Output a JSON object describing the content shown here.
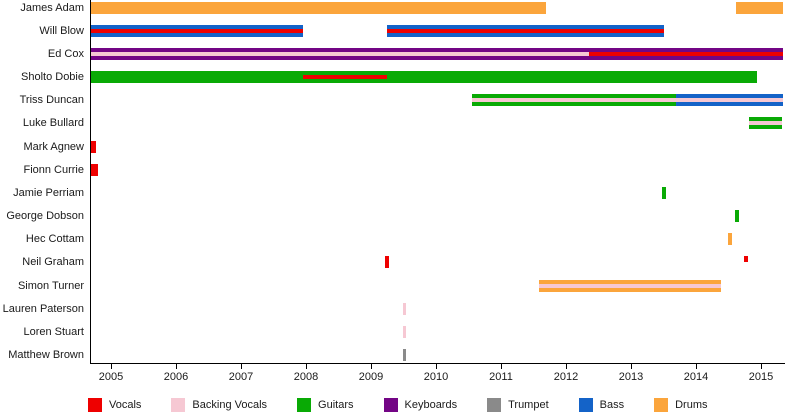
{
  "chart_data": {
    "type": "bar",
    "subtype": "membership-timeline",
    "title": "",
    "x_axis": {
      "tick_years": [
        2005,
        2006,
        2007,
        2008,
        2009,
        2010,
        2011,
        2012,
        2013,
        2014,
        2015
      ],
      "range": [
        2004.68,
        2015.37
      ],
      "grid": false
    },
    "legend_position": "bottom",
    "roles": [
      {
        "label": "Vocals",
        "color": "#ee0000"
      },
      {
        "label": "Backing Vocals",
        "color": "#f6c8d3"
      },
      {
        "label": "Guitars",
        "color": "#09aa05"
      },
      {
        "label": "Keyboards",
        "color": "#730585"
      },
      {
        "label": "Trumpet",
        "color": "#8a8a8a"
      },
      {
        "label": "Bass",
        "color": "#1463c8"
      },
      {
        "label": "Drums",
        "color": "#fba53c"
      }
    ],
    "members": [
      {
        "name": "James Adam",
        "segments": [
          {
            "from": 2004.68,
            "to": 2011.68,
            "role": "Drums"
          },
          {
            "from": 2014.6,
            "to": 2015.32,
            "role": "Drums"
          }
        ]
      },
      {
        "name": "Will Blow",
        "segments": [
          {
            "from": 2004.68,
            "to": 2007.94,
            "role": "Bass",
            "stripe": "Vocals"
          },
          {
            "from": 2009.23,
            "to": 2013.49,
            "role": "Bass",
            "stripe": "Vocals"
          }
        ]
      },
      {
        "name": "Ed Cox",
        "segments": [
          {
            "from": 2004.68,
            "to": 2012.34,
            "role": "Keyboards",
            "stripe": "Backing Vocals"
          },
          {
            "from": 2012.34,
            "to": 2015.32,
            "role": "Keyboards",
            "stripe": "Vocals"
          }
        ]
      },
      {
        "name": "Sholto Dobie",
        "segments": [
          {
            "from": 2004.68,
            "to": 2007.94,
            "role": "Guitars"
          },
          {
            "from": 2007.94,
            "to": 2009.23,
            "role": "Guitars",
            "stripe": "Vocals"
          },
          {
            "from": 2009.23,
            "to": 2014.92,
            "role": "Guitars"
          }
        ]
      },
      {
        "name": "Triss Duncan",
        "segments": [
          {
            "from": 2010.54,
            "to": 2013.68,
            "role": "Guitars",
            "stripe": "Backing Vocals"
          },
          {
            "from": 2013.68,
            "to": 2015.32,
            "role": "Bass",
            "stripe": "Backing Vocals"
          }
        ]
      },
      {
        "name": "Luke Bullard",
        "segments": [
          {
            "from": 2014.8,
            "to": 2015.3,
            "role": "Guitars",
            "stripe": "Backing Vocals"
          }
        ]
      },
      {
        "name": "Mark Agnew",
        "segments": [
          {
            "from": 2004.68,
            "to": 2004.76,
            "role": "Vocals"
          }
        ]
      },
      {
        "name": "Fionn Currie",
        "segments": [
          {
            "from": 2004.68,
            "to": 2004.78,
            "role": "Vocals"
          }
        ]
      },
      {
        "name": "Jamie Perriam",
        "segments": [
          {
            "from": 2013.46,
            "to": 2013.52,
            "role": "Guitars"
          }
        ]
      },
      {
        "name": "George Dobson",
        "segments": [
          {
            "from": 2014.58,
            "to": 2014.64,
            "role": "Guitars"
          }
        ]
      },
      {
        "name": "Hec Cottam",
        "segments": [
          {
            "from": 2014.48,
            "to": 2014.54,
            "role": "Drums"
          }
        ]
      },
      {
        "name": "Neil Graham",
        "segments": [
          {
            "from": 2009.2,
            "to": 2009.26,
            "role": "Vocals"
          },
          {
            "from": 2014.73,
            "to": 2014.79,
            "role": "Vocals",
            "half": true
          }
        ]
      },
      {
        "name": "Simon Turner",
        "segments": [
          {
            "from": 2011.57,
            "to": 2014.37,
            "role": "Drums",
            "stripe": "Backing Vocals"
          }
        ]
      },
      {
        "name": "Lauren Paterson",
        "segments": [
          {
            "from": 2009.47,
            "to": 2009.53,
            "role": "Backing Vocals"
          }
        ]
      },
      {
        "name": "Loren Stuart",
        "segments": [
          {
            "from": 2009.47,
            "to": 2009.53,
            "role": "Backing Vocals"
          }
        ]
      },
      {
        "name": "Matthew Brown",
        "segments": [
          {
            "from": 2009.47,
            "to": 2009.53,
            "role": "Trumpet"
          }
        ]
      }
    ]
  }
}
